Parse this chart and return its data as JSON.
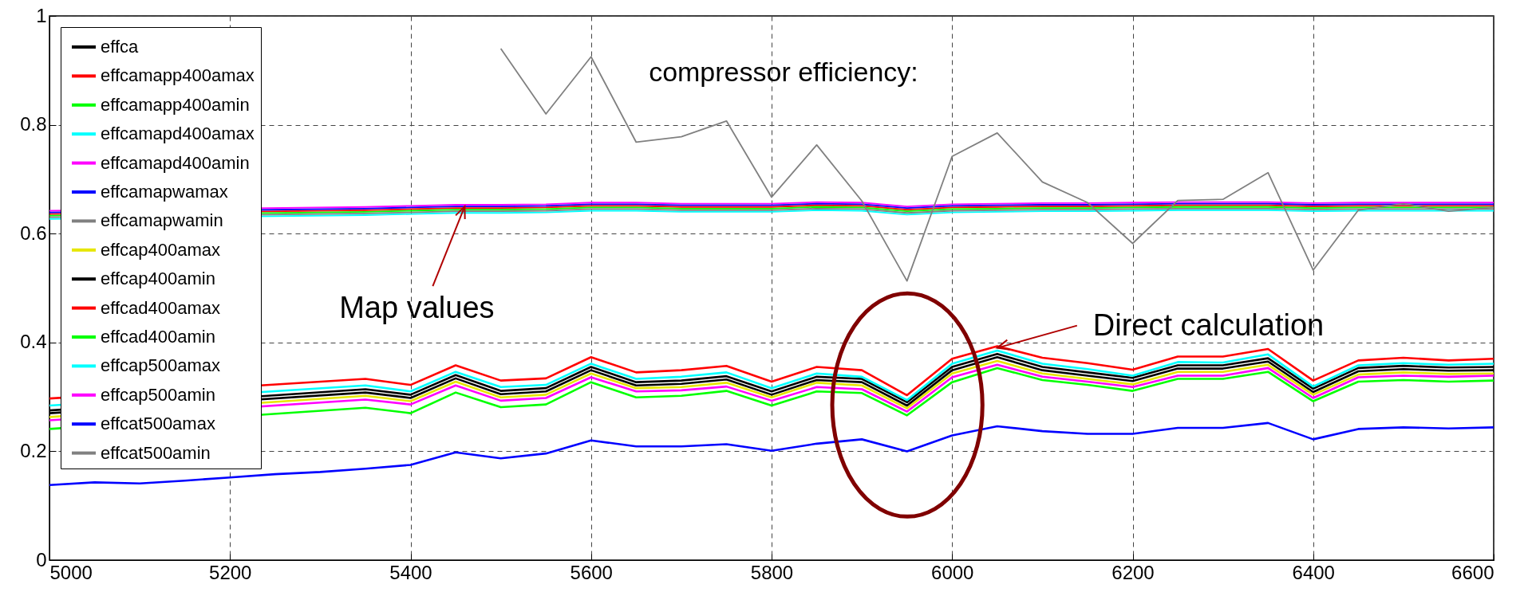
{
  "chart_data": {
    "type": "line",
    "x": [
      5000,
      5050,
      5100,
      5150,
      5200,
      5250,
      5300,
      5350,
      5400,
      5450,
      5500,
      5550,
      5600,
      5650,
      5700,
      5750,
      5800,
      5850,
      5900,
      5950,
      6000,
      6050,
      6100,
      6150,
      6200,
      6250,
      6300,
      6350,
      6400,
      6450,
      6500,
      6550,
      6600
    ],
    "series": [
      {
        "name": "effca",
        "color": "#000000",
        "values": [
          0.275,
          null,
          null,
          null,
          null,
          null,
          null,
          0.314,
          0.304,
          0.34,
          0.311,
          0.316,
          0.355,
          0.327,
          0.33,
          0.338,
          0.31,
          0.337,
          0.333,
          0.29,
          0.355,
          0.379,
          0.355,
          0.345,
          0.335,
          0.358,
          0.358,
          0.371,
          0.315,
          0.353,
          0.357,
          0.354,
          0.355
        ]
      },
      {
        "name": "effcamapp400amax",
        "color": "#ff0000",
        "values": [
          0.636,
          null,
          null,
          null,
          null,
          null,
          null,
          0.643,
          0.645,
          0.647,
          0.647,
          0.648,
          0.651,
          0.651,
          0.649,
          0.649,
          0.649,
          0.652,
          0.651,
          0.644,
          0.648,
          0.649,
          0.65,
          0.65,
          0.651,
          0.652,
          0.652,
          0.652,
          0.65,
          0.651,
          0.651,
          0.651,
          0.651
        ]
      },
      {
        "name": "effcamapp400amin",
        "color": "#00ff00",
        "values": [
          0.633,
          null,
          null,
          null,
          null,
          null,
          null,
          0.64,
          0.642,
          0.644,
          0.644,
          0.645,
          0.648,
          0.648,
          0.646,
          0.646,
          0.646,
          0.649,
          0.648,
          0.641,
          0.645,
          0.646,
          0.647,
          0.647,
          0.648,
          0.649,
          0.649,
          0.649,
          0.647,
          0.648,
          0.648,
          0.648,
          0.648
        ]
      },
      {
        "name": "effcamapd400amax",
        "color": "#00ffff",
        "values": [
          0.627,
          null,
          null,
          null,
          null,
          null,
          null,
          0.634,
          0.636,
          0.638,
          0.638,
          0.639,
          0.642,
          0.642,
          0.64,
          0.64,
          0.64,
          0.643,
          0.642,
          0.635,
          0.639,
          0.64,
          0.641,
          0.641,
          0.642,
          0.643,
          0.643,
          0.643,
          0.641,
          0.642,
          0.642,
          0.642,
          0.642
        ]
      },
      {
        "name": "effcamapd400amin",
        "color": "#ff00ff",
        "values": [
          0.642,
          null,
          null,
          null,
          null,
          null,
          null,
          0.649,
          0.651,
          0.653,
          0.653,
          0.654,
          0.657,
          0.657,
          0.655,
          0.655,
          0.655,
          0.658,
          0.657,
          0.65,
          0.654,
          0.655,
          0.656,
          0.656,
          0.657,
          0.658,
          0.658,
          0.658,
          0.656,
          0.657,
          0.657,
          0.657,
          0.657
        ]
      },
      {
        "name": "effcamapwamax",
        "color": "#0000ff",
        "values": [
          0.639,
          null,
          null,
          null,
          null,
          null,
          null,
          0.646,
          0.648,
          0.65,
          0.65,
          0.651,
          0.654,
          0.654,
          0.652,
          0.652,
          0.652,
          0.655,
          0.654,
          0.647,
          0.651,
          0.652,
          0.653,
          0.653,
          0.654,
          0.655,
          0.655,
          0.655,
          0.653,
          0.654,
          0.654,
          0.654,
          0.654
        ]
      },
      {
        "name": "effcamapwamin",
        "color": "#808080",
        "values": [
          0.63,
          null,
          null,
          null,
          null,
          null,
          null,
          0.637,
          0.639,
          0.641,
          0.641,
          0.642,
          0.645,
          0.645,
          0.643,
          0.643,
          0.643,
          0.646,
          0.645,
          0.638,
          0.642,
          0.643,
          0.644,
          0.644,
          0.645,
          0.646,
          0.646,
          0.646,
          0.644,
          0.645,
          0.645,
          0.645,
          0.645
        ]
      },
      {
        "name": "effcap400amax",
        "color": "#e6e600",
        "values": [
          0.263,
          null,
          null,
          null,
          null,
          null,
          null,
          0.302,
          0.292,
          0.328,
          0.299,
          0.304,
          0.343,
          0.316,
          0.318,
          0.326,
          0.299,
          0.326,
          0.321,
          0.279,
          0.343,
          0.366,
          0.343,
          0.333,
          0.323,
          0.346,
          0.346,
          0.359,
          0.304,
          0.341,
          0.345,
          0.342,
          0.343
        ]
      },
      {
        "name": "effcap400amin",
        "color": "#000000",
        "values": [
          0.27,
          null,
          null,
          null,
          null,
          null,
          null,
          0.308,
          0.298,
          0.334,
          0.305,
          0.31,
          0.349,
          0.321,
          0.324,
          0.332,
          0.304,
          0.331,
          0.327,
          0.284,
          0.349,
          0.373,
          0.349,
          0.339,
          0.329,
          0.352,
          0.352,
          0.365,
          0.309,
          0.347,
          0.351,
          0.348,
          0.349
        ]
      },
      {
        "name": "effcad400amax",
        "color": "#ff0000",
        "values": [
          0.297,
          null,
          null,
          null,
          null,
          null,
          null,
          0.333,
          0.322,
          0.358,
          0.33,
          0.334,
          0.373,
          0.345,
          0.349,
          0.357,
          0.328,
          0.355,
          0.349,
          0.303,
          0.37,
          0.393,
          0.372,
          0.362,
          0.35,
          0.374,
          0.374,
          0.388,
          0.33,
          0.367,
          0.372,
          0.367,
          0.37
        ]
      },
      {
        "name": "effcad400amin",
        "color": "#00ff00",
        "values": [
          0.241,
          null,
          null,
          null,
          null,
          null,
          null,
          0.28,
          0.27,
          0.308,
          0.281,
          0.286,
          0.327,
          0.299,
          0.302,
          0.311,
          0.284,
          0.31,
          0.307,
          0.266,
          0.327,
          0.353,
          0.331,
          0.322,
          0.311,
          0.333,
          0.333,
          0.346,
          0.292,
          0.328,
          0.331,
          0.328,
          0.33
        ]
      },
      {
        "name": "effcap500amax",
        "color": "#00ffff",
        "values": [
          0.284,
          null,
          null,
          null,
          null,
          null,
          null,
          0.321,
          0.31,
          0.346,
          0.318,
          0.322,
          0.361,
          0.333,
          0.337,
          0.345,
          0.316,
          0.343,
          0.337,
          0.294,
          0.361,
          0.385,
          0.361,
          0.351,
          0.339,
          0.364,
          0.363,
          0.378,
          0.319,
          0.358,
          0.362,
          0.359,
          0.361
        ]
      },
      {
        "name": "effcap500amin",
        "color": "#ff00ff",
        "values": [
          0.257,
          null,
          null,
          null,
          null,
          null,
          null,
          0.295,
          0.286,
          0.321,
          0.293,
          0.298,
          0.336,
          0.31,
          0.312,
          0.319,
          0.293,
          0.318,
          0.314,
          0.273,
          0.336,
          0.359,
          0.337,
          0.328,
          0.318,
          0.339,
          0.339,
          0.353,
          0.298,
          0.336,
          0.339,
          0.337,
          0.339
        ]
      },
      {
        "name": "effcat500amax",
        "color": "#0000ff",
        "values": [
          0.138,
          0.143,
          0.141,
          0.146,
          0.152,
          0.158,
          0.162,
          0.168,
          0.175,
          0.198,
          0.187,
          0.196,
          0.22,
          0.209,
          0.209,
          0.213,
          0.201,
          0.214,
          0.222,
          0.2,
          0.229,
          0.246,
          0.237,
          0.232,
          0.232,
          0.243,
          0.243,
          0.252,
          0.222,
          0.241,
          0.244,
          0.242,
          0.244
        ]
      },
      {
        "name": "effcat500amin",
        "color": "#808080",
        "values": [
          null,
          null,
          null,
          null,
          null,
          null,
          null,
          null,
          null,
          null,
          0.94,
          0.82,
          0.925,
          0.768,
          0.778,
          0.807,
          0.667,
          0.763,
          0.66,
          0.513,
          0.742,
          0.785,
          0.695,
          0.657,
          0.582,
          0.661,
          0.663,
          0.712,
          0.533,
          0.643,
          0.655,
          0.641,
          0.648
        ]
      }
    ],
    "xlim": [
      5000,
      6600
    ],
    "xticks": [
      5000,
      5200,
      5400,
      5600,
      5800,
      6000,
      6200,
      6400,
      6600
    ],
    "ylim": [
      0,
      1
    ],
    "yticks": [
      0,
      0.2,
      0.4,
      0.6,
      0.8,
      1
    ],
    "grid": true,
    "legend": "top left",
    "annotations": [
      "compressor efficiency:",
      {
        "text": "Map values",
        "x": 5460,
        "y": 0.65
      },
      {
        "text": "Direct calculation",
        "x": 6050,
        "y": 0.39
      }
    ]
  }
}
